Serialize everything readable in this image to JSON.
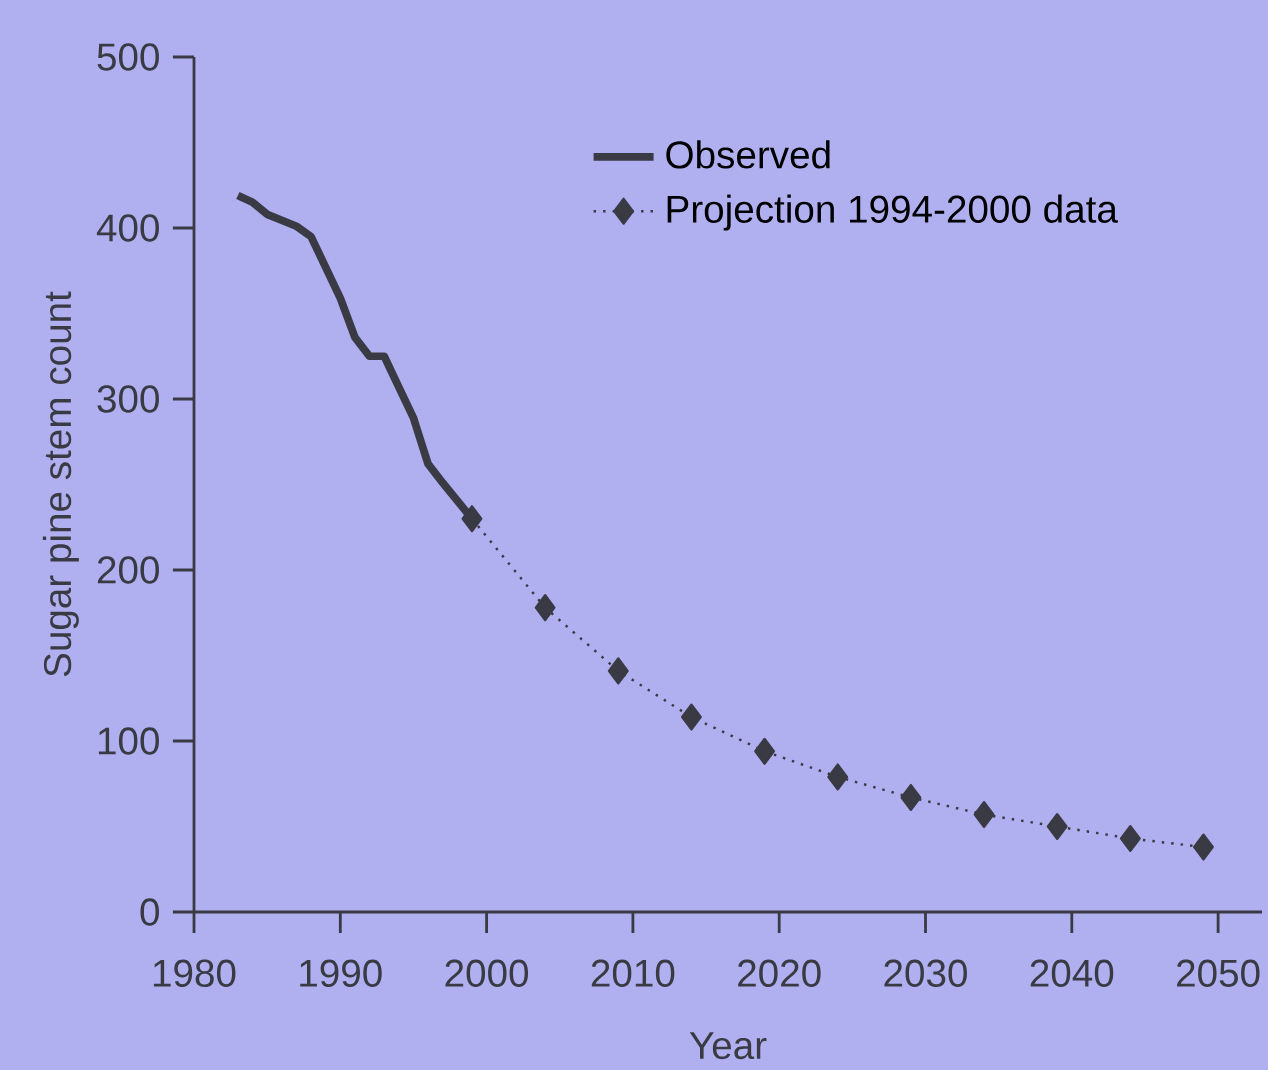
{
  "chart_data": {
    "type": "line",
    "xlabel": "Year",
    "ylabel": "Sugar pine stem count",
    "xlim": [
      1980,
      2053
    ],
    "xticks": [
      1980,
      1990,
      2000,
      2010,
      2020,
      2030,
      2040,
      2050
    ],
    "ylim": [
      0,
      500
    ],
    "yticks": [
      0,
      100,
      200,
      300,
      400,
      500
    ],
    "grid": false,
    "legend": "top right",
    "series": [
      {
        "name": "Observed",
        "color": "#3a3a44",
        "line_style": "solid",
        "marker": "none",
        "x": [
          1983,
          1984,
          1985,
          1987,
          1988,
          1989,
          1990,
          1991,
          1992,
          1993,
          1994,
          1995,
          1996,
          1997,
          1999
        ],
        "values": [
          419,
          415,
          408,
          401,
          395,
          377,
          359,
          336,
          325,
          325,
          307,
          289,
          262,
          251,
          230
        ]
      },
      {
        "name": "Projection 1994-2000 data",
        "color": "#3a3a44",
        "line_style": "dotted",
        "marker": "diamond",
        "x": [
          1999,
          2004,
          2009,
          2014,
          2019,
          2024,
          2029,
          2034,
          2039,
          2044,
          2049
        ],
        "values": [
          230,
          178,
          141,
          114,
          94,
          79,
          67,
          57,
          50,
          43,
          38
        ]
      }
    ]
  }
}
